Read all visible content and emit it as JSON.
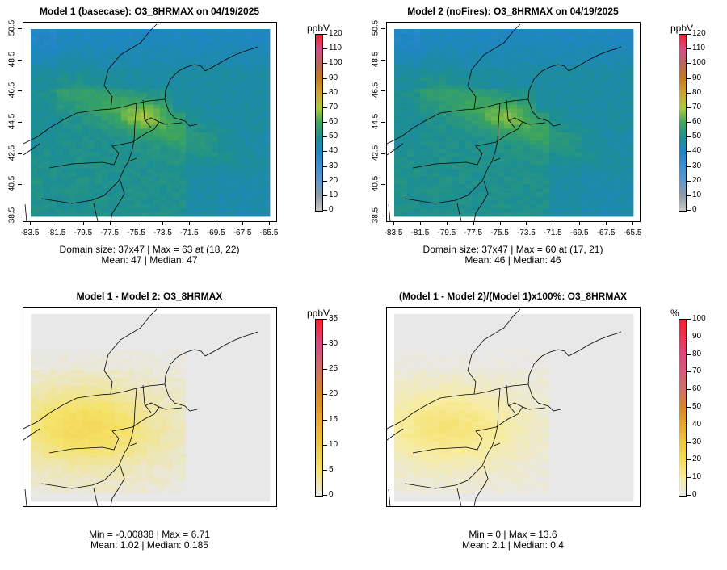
{
  "chart_data": [
    {
      "type": "heatmap",
      "title": "Model 1 (basecase): O3_8HRMAX on 04/19/2025",
      "x_ticks": [
        "-83.5",
        "-81.5",
        "-79.5",
        "-77.5",
        "-75.5",
        "-73.5",
        "-71.5",
        "-69.5",
        "-67.5",
        "-65.5"
      ],
      "y_ticks": [
        "38.5",
        "40.5",
        "42.5",
        "44.5",
        "46.5",
        "48.5",
        "50.5"
      ],
      "xlim": [
        -83.5,
        -65.5
      ],
      "ylim": [
        38.5,
        50.5
      ],
      "colorbar": {
        "unit": "ppbV",
        "min": 0,
        "max": 120,
        "ticks": [
          "0",
          "10",
          "20",
          "30",
          "40",
          "50",
          "60",
          "70",
          "80",
          "90",
          "100",
          "110",
          "120"
        ]
      },
      "stats": [
        "Domain size: 37x47 | Max = 63 at (18, 22)",
        "Mean: 47 |  Median: 47"
      ]
    },
    {
      "type": "heatmap",
      "title": "Model 2 (noFires): O3_8HRMAX on 04/19/2025",
      "x_ticks": [
        "-83.5",
        "-81.5",
        "-79.5",
        "-77.5",
        "-75.5",
        "-73.5",
        "-71.5",
        "-69.5",
        "-67.5",
        "-65.5"
      ],
      "y_ticks": [
        "38.5",
        "40.5",
        "42.5",
        "44.5",
        "46.5",
        "48.5",
        "50.5"
      ],
      "xlim": [
        -83.5,
        -65.5
      ],
      "ylim": [
        38.5,
        50.5
      ],
      "colorbar": {
        "unit": "ppbV",
        "min": 0,
        "max": 120,
        "ticks": [
          "0",
          "10",
          "20",
          "30",
          "40",
          "50",
          "60",
          "70",
          "80",
          "90",
          "100",
          "110",
          "120"
        ]
      },
      "stats": [
        "Domain size: 37x47 | Max = 60 at (17, 21)",
        "Mean: 46 |  Median: 46"
      ]
    },
    {
      "type": "heatmap",
      "title": "Model 1 - Model 2: O3_8HRMAX",
      "colorbar": {
        "unit": "ppbV",
        "min": 0,
        "max": 35,
        "ticks": [
          "0",
          "5",
          "10",
          "15",
          "20",
          "25",
          "30",
          "35"
        ]
      },
      "stats": [
        "Min = -0.00838 | Max = 6.71",
        "Mean: 1.02 |  Median: 0.185"
      ]
    },
    {
      "type": "heatmap",
      "title": "(Model 1 - Model 2)/(Model 1)x100%: O3_8HRMAX",
      "colorbar": {
        "unit": "%",
        "min": 0,
        "max": 100,
        "ticks": [
          "0",
          "10",
          "20",
          "30",
          "40",
          "50",
          "60",
          "70",
          "80",
          "90",
          "100"
        ]
      },
      "stats": [
        "Min = 0 | Max = 13.6",
        "Mean: 2.1 |  Median: 0.4"
      ]
    }
  ]
}
